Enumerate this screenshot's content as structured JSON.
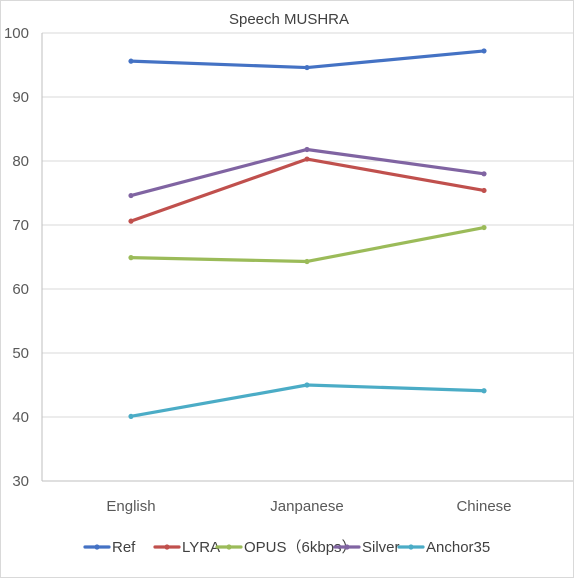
{
  "chart_data": {
    "type": "line",
    "title": "Speech MUSHRA",
    "categories": [
      "English",
      "Janpanese",
      "Chinese"
    ],
    "ylim": [
      30,
      100
    ],
    "yticks": [
      30,
      40,
      50,
      60,
      70,
      80,
      90,
      100
    ],
    "grid": "horizontal",
    "legend_position": "bottom",
    "series": [
      {
        "name": "Ref",
        "color": "#4472C4",
        "values": [
          95.6,
          94.6,
          97.2
        ]
      },
      {
        "name": "LYRA",
        "color": "#C0504D",
        "values": [
          70.6,
          80.3,
          75.4
        ]
      },
      {
        "name": "OPUS（6kbps）",
        "color": "#9BBB59",
        "values": [
          64.9,
          64.3,
          69.6
        ]
      },
      {
        "name": "Silver",
        "color": "#8064A2",
        "values": [
          74.6,
          81.8,
          78.0
        ]
      },
      {
        "name": "Anchor35",
        "color": "#4BACC6",
        "values": [
          40.1,
          45.0,
          44.1
        ]
      }
    ]
  }
}
